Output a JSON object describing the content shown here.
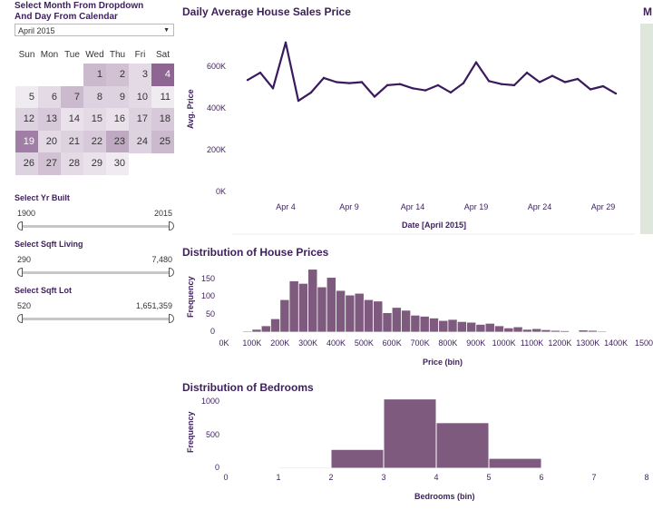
{
  "filters": {
    "month_day_title_line1": "Select Month From Dropdown",
    "month_day_title_line2": "And Day From Calendar",
    "month_dropdown_value": "April 2015"
  },
  "calendar": {
    "weekdays": [
      "Sun",
      "Mon",
      "Tue",
      "Wed",
      "Thu",
      "Fri",
      "Sat"
    ],
    "first_weekday_index": 3,
    "days": [
      "1",
      "2",
      "3",
      "4",
      "5",
      "6",
      "7",
      "8",
      "9",
      "10",
      "11",
      "12",
      "13",
      "14",
      "15",
      "16",
      "17",
      "18",
      "19",
      "20",
      "21",
      "22",
      "23",
      "24",
      "25",
      "26",
      "27",
      "28",
      "29",
      "30"
    ],
    "intensity": [
      0.35,
      0.3,
      0.15,
      0.85,
      0.05,
      0.15,
      0.35,
      0.2,
      0.2,
      0.15,
      0.05,
      0.2,
      0.25,
      0.1,
      0.15,
      0.1,
      0.2,
      0.25,
      0.7,
      0.15,
      0.2,
      0.25,
      0.45,
      0.2,
      0.35,
      0.2,
      0.3,
      0.15,
      0.1,
      0.05
    ],
    "selected_day": "19"
  },
  "sliders": [
    {
      "title": "Select Yr Built",
      "min": "1900",
      "max": "2015"
    },
    {
      "title": "Select Sqft Living",
      "min": "290",
      "max": "7,480"
    },
    {
      "title": "Select Sqft Lot",
      "min": "520",
      "max": "1,651,359"
    }
  ],
  "line_chart": {
    "title": "Daily Average House Sales Price",
    "ylabel": "Avg. Price",
    "xlabel": "Date [April 2015]",
    "y_ticks": [
      "600K",
      "400K",
      "200K",
      "0K"
    ],
    "x_ticks": [
      "Apr 4",
      "Apr 9",
      "Apr 14",
      "Apr 19",
      "Apr 24",
      "Apr 29"
    ]
  },
  "price_hist": {
    "title": "Distribution of House Prices",
    "ylabel": "Frequency",
    "xlabel": "Price (bin)",
    "y_ticks": [
      "150",
      "100",
      "50",
      "0"
    ],
    "x_ticks": [
      "0K",
      "100K",
      "200K",
      "300K",
      "400K",
      "500K",
      "600K",
      "700K",
      "800K",
      "900K",
      "1000K",
      "1100K",
      "1200K",
      "1300K",
      "1400K",
      "1500"
    ]
  },
  "bed_hist": {
    "title": "Distribution of Bedrooms",
    "ylabel": "Frequency",
    "xlabel": "Bedrooms (bin)",
    "y_ticks": [
      "1000",
      "500",
      "0"
    ],
    "x_ticks": [
      "0",
      "1",
      "2",
      "3",
      "4",
      "5",
      "6",
      "7",
      "8"
    ]
  },
  "map": {
    "title_fragment": "M"
  },
  "colors": {
    "accent": "#3d1f5c",
    "bar": "#7d5a7e",
    "line": "#3a1a5e"
  },
  "chart_data": [
    {
      "type": "line",
      "title": "Daily Average House Sales Price",
      "xlabel": "Date [April 2015]",
      "ylabel": "Avg. Price",
      "x": [
        1,
        2,
        3,
        4,
        5,
        6,
        7,
        8,
        9,
        10,
        11,
        12,
        13,
        14,
        15,
        16,
        17,
        18,
        19,
        20,
        21,
        22,
        23,
        24,
        25,
        26,
        27,
        28,
        29,
        30
      ],
      "values": [
        540000,
        575000,
        500000,
        720000,
        440000,
        480000,
        550000,
        530000,
        525000,
        530000,
        460000,
        515000,
        520000,
        500000,
        490000,
        515000,
        480000,
        525000,
        625000,
        535000,
        520000,
        515000,
        575000,
        530000,
        560000,
        530000,
        545000,
        495000,
        510000,
        475000
      ],
      "ylim": [
        0,
        750000
      ]
    },
    {
      "type": "bar",
      "title": "Distribution of House Prices",
      "xlabel": "Price (bin)",
      "ylabel": "Frequency",
      "bin_width": 33333,
      "bin_start": 66667,
      "values": [
        3,
        8,
        18,
        38,
        92,
        145,
        138,
        178,
        128,
        155,
        118,
        105,
        110,
        92,
        88,
        55,
        70,
        62,
        48,
        45,
        40,
        33,
        36,
        30,
        28,
        22,
        25,
        18,
        12,
        15,
        8,
        10,
        7,
        5,
        4,
        2,
        6,
        5,
        3
      ],
      "ylim": [
        0,
        190
      ]
    },
    {
      "type": "bar",
      "title": "Distribution of Bedrooms",
      "xlabel": "Bedrooms (bin)",
      "ylabel": "Frequency",
      "bins": [
        [
          1,
          2
        ],
        [
          2,
          3
        ],
        [
          3,
          4
        ],
        [
          4,
          5
        ],
        [
          5,
          6
        ],
        [
          6,
          7
        ]
      ],
      "values": [
        15,
        285,
        1050,
        690,
        150,
        8
      ],
      "ylim": [
        0,
        1100
      ]
    }
  ]
}
